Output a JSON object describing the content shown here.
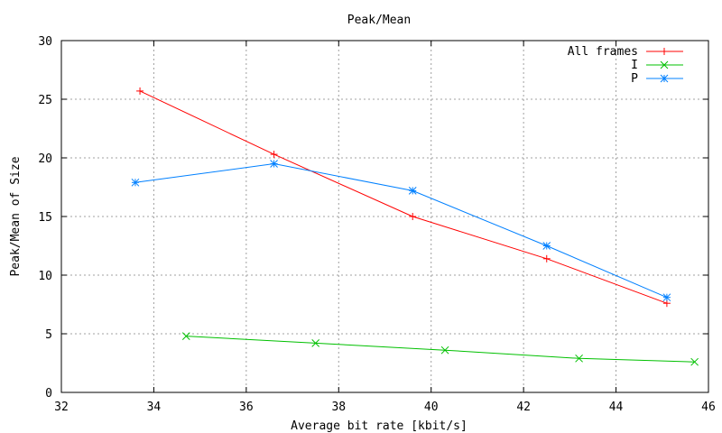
{
  "chart_data": {
    "type": "line",
    "title": "Peak/Mean",
    "xlabel": "Average bit rate [kbit/s]",
    "ylabel": "Peak/Mean of Size",
    "xlim": [
      32,
      46
    ],
    "ylim": [
      0,
      30
    ],
    "xticks": [
      32,
      34,
      36,
      38,
      40,
      42,
      44,
      46
    ],
    "yticks": [
      0,
      5,
      10,
      15,
      20,
      25,
      30
    ],
    "grid": true,
    "legend_position": "top-right",
    "series": [
      {
        "name": "All frames",
        "color": "#ff0000",
        "marker": "plus",
        "x": [
          33.7,
          36.6,
          39.6,
          42.5,
          45.1
        ],
        "y": [
          25.7,
          20.3,
          15.0,
          11.4,
          7.6
        ]
      },
      {
        "name": "I",
        "color": "#00c000",
        "marker": "cross",
        "x": [
          34.7,
          37.5,
          40.3,
          43.2,
          45.7
        ],
        "y": [
          4.8,
          4.2,
          3.6,
          2.9,
          2.6
        ]
      },
      {
        "name": "P",
        "color": "#0080ff",
        "marker": "star",
        "x": [
          33.6,
          36.6,
          39.6,
          42.5,
          45.1
        ],
        "y": [
          17.9,
          19.5,
          17.2,
          12.5,
          8.1
        ]
      }
    ]
  }
}
